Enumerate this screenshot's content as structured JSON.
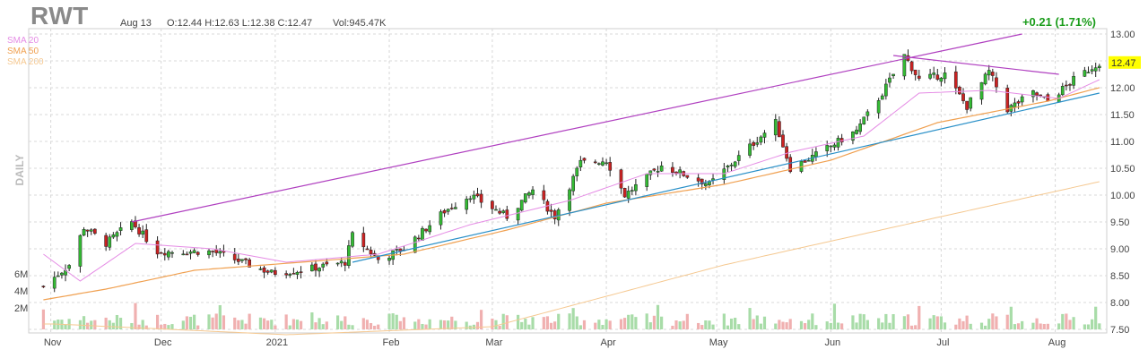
{
  "header": {
    "ticker": "RWT",
    "date": "Aug 13",
    "ohlc": "O:12.44 H:12.63 L:12.38 C:12.47",
    "volume": "Vol:945.47K",
    "change": "+0.21 (1.71%)"
  },
  "legend": {
    "sma20": {
      "label": "SMA 20",
      "color": "#e58ce5"
    },
    "sma50": {
      "label": "SMA 50",
      "color": "#f0a050"
    },
    "sma200": {
      "label": "SMA 200",
      "color": "#f5c890"
    }
  },
  "timeframe_label": "DAILY",
  "chart_data": {
    "type": "candlestick",
    "y_axis": {
      "min": 7.5,
      "max": 13.0,
      "ticks": [
        "13.00",
        "12.50",
        "12.00",
        "11.50",
        "11.00",
        "10.50",
        "10.00",
        "9.50",
        "9.00",
        "8.50",
        "8.00",
        "7.50"
      ],
      "position": "right"
    },
    "x_axis": {
      "ticks": [
        "Nov",
        "Dec",
        "2021",
        "Feb",
        "Mar",
        "Apr",
        "May",
        "Jun",
        "Jul",
        "Aug"
      ]
    },
    "volume_axis": {
      "ticks": [
        "6M",
        "4M",
        "2M"
      ]
    },
    "last_price": "12.47",
    "last_price_color": "#ffff00",
    "colors": {
      "up": "#33bb33",
      "down": "#cc2222",
      "vol_up": "#a8dca8",
      "vol_down": "#f0b0b0",
      "upper_trend": "#b040c0",
      "lower_trend": "#2a90c8"
    },
    "price_keypoints": [
      {
        "x": "2020-10-30",
        "y": 8.3
      },
      {
        "x": "2020-11-06",
        "y": 8.7
      },
      {
        "x": "2020-11-10",
        "y": 9.4
      },
      {
        "x": "2020-11-16",
        "y": 9.1
      },
      {
        "x": "2020-11-23",
        "y": 9.5
      },
      {
        "x": "2020-11-30",
        "y": 8.95
      },
      {
        "x": "2020-12-15",
        "y": 8.95
      },
      {
        "x": "2020-12-31",
        "y": 8.55
      },
      {
        "x": "2021-01-08",
        "y": 8.6
      },
      {
        "x": "2021-01-20",
        "y": 8.75
      },
      {
        "x": "2021-01-22",
        "y": 9.25
      },
      {
        "x": "2021-01-29",
        "y": 8.8
      },
      {
        "x": "2021-02-05",
        "y": 9.0
      },
      {
        "x": "2021-02-16",
        "y": 9.7
      },
      {
        "x": "2021-02-23",
        "y": 10.0
      },
      {
        "x": "2021-03-05",
        "y": 9.6
      },
      {
        "x": "2021-03-12",
        "y": 10.1
      },
      {
        "x": "2021-03-18",
        "y": 9.6
      },
      {
        "x": "2021-03-25",
        "y": 10.6
      },
      {
        "x": "2021-04-01",
        "y": 10.65
      },
      {
        "x": "2021-04-06",
        "y": 10.0
      },
      {
        "x": "2021-04-16",
        "y": 10.55
      },
      {
        "x": "2021-04-29",
        "y": 10.2
      },
      {
        "x": "2021-05-17",
        "y": 11.35
      },
      {
        "x": "2021-05-21",
        "y": 10.5
      },
      {
        "x": "2021-05-28",
        "y": 10.75
      },
      {
        "x": "2021-06-08",
        "y": 11.2
      },
      {
        "x": "2021-06-15",
        "y": 11.9
      },
      {
        "x": "2021-06-21",
        "y": 12.6
      },
      {
        "x": "2021-06-25",
        "y": 12.15
      },
      {
        "x": "2021-07-02",
        "y": 12.25
      },
      {
        "x": "2021-07-08",
        "y": 11.65
      },
      {
        "x": "2021-07-14",
        "y": 12.3
      },
      {
        "x": "2021-07-19",
        "y": 11.6
      },
      {
        "x": "2021-07-26",
        "y": 11.9
      },
      {
        "x": "2021-07-30",
        "y": 11.75
      },
      {
        "x": "2021-08-06",
        "y": 12.15
      },
      {
        "x": "2021-08-13",
        "y": 12.47
      }
    ],
    "sma20_keypoints": [
      {
        "x": "2020-10-30",
        "y": 8.9
      },
      {
        "x": "2020-11-09",
        "y": 8.4
      },
      {
        "x": "2020-11-24",
        "y": 9.1
      },
      {
        "x": "2020-12-15",
        "y": 9.0
      },
      {
        "x": "2021-01-04",
        "y": 8.75
      },
      {
        "x": "2021-01-29",
        "y": 8.9
      },
      {
        "x": "2021-02-23",
        "y": 9.45
      },
      {
        "x": "2021-03-22",
        "y": 9.9
      },
      {
        "x": "2021-04-12",
        "y": 10.4
      },
      {
        "x": "2021-05-03",
        "y": 10.4
      },
      {
        "x": "2021-05-21",
        "y": 10.8
      },
      {
        "x": "2021-06-10",
        "y": 11.1
      },
      {
        "x": "2021-06-25",
        "y": 11.9
      },
      {
        "x": "2021-07-14",
        "y": 11.95
      },
      {
        "x": "2021-08-02",
        "y": 11.8
      },
      {
        "x": "2021-08-13",
        "y": 12.15
      }
    ],
    "sma50_keypoints": [
      {
        "x": "2020-10-30",
        "y": 8.05
      },
      {
        "x": "2020-11-16",
        "y": 8.25
      },
      {
        "x": "2020-12-10",
        "y": 8.6
      },
      {
        "x": "2021-01-08",
        "y": 8.75
      },
      {
        "x": "2021-02-05",
        "y": 8.9
      },
      {
        "x": "2021-03-05",
        "y": 9.35
      },
      {
        "x": "2021-04-01",
        "y": 9.85
      },
      {
        "x": "2021-05-03",
        "y": 10.2
      },
      {
        "x": "2021-06-01",
        "y": 10.65
      },
      {
        "x": "2021-06-30",
        "y": 11.35
      },
      {
        "x": "2021-07-30",
        "y": 11.75
      },
      {
        "x": "2021-08-13",
        "y": 12.0
      }
    ],
    "sma200_keypoints": [
      {
        "x": "2020-11-02",
        "y": 7.6
      },
      {
        "x": "2021-01-04",
        "y": 7.4
      },
      {
        "x": "2021-03-01",
        "y": 7.55
      },
      {
        "x": "2021-05-03",
        "y": 8.7
      },
      {
        "x": "2021-07-01",
        "y": 9.6
      },
      {
        "x": "2021-08-13",
        "y": 10.25
      }
    ],
    "trendlines": [
      {
        "name": "upper channel",
        "points": [
          {
            "x": "2020-11-23",
            "y": 9.5
          },
          {
            "x": "2021-07-23",
            "y": 13.0
          }
        ]
      },
      {
        "name": "lower channel",
        "points": [
          {
            "x": "2021-01-22",
            "y": 8.75
          },
          {
            "x": "2021-08-13",
            "y": 11.9
          }
        ]
      },
      {
        "name": "resistance",
        "points": [
          {
            "x": "2021-06-18",
            "y": 12.6
          },
          {
            "x": "2021-08-02",
            "y": 12.25
          }
        ]
      }
    ]
  }
}
